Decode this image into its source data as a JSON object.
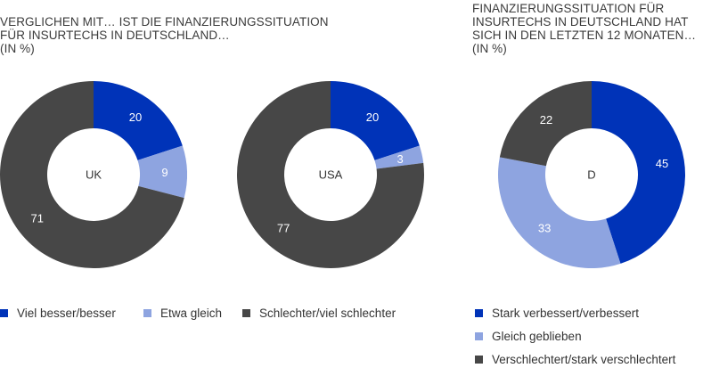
{
  "titles": {
    "left": [
      "VERGLICHEN MIT… IST DIE FINANZIERUNGSSITUATION",
      "FÜR INSURTECHS IN DEUTSCHLAND…",
      "(IN %)"
    ],
    "right": [
      "FINANZIERUNGSSITUATION FÜR",
      "INSURTECHS IN DEUTSCHLAND HAT",
      "SICH IN DEN LETZTEN 12 MONATEN…",
      "(IN %)"
    ]
  },
  "colors": {
    "dark_blue": "#0033b8",
    "light_blue": "#8ea4e0",
    "dark_grey": "#474747"
  },
  "legend_left": [
    {
      "label": "Viel besser/besser",
      "color": "#0033b8"
    },
    {
      "label": "Etwa gleich",
      "color": "#8ea4e0"
    },
    {
      "label": "Schlechter/viel schlechter",
      "color": "#474747"
    }
  ],
  "legend_right": [
    {
      "label": "Stark verbessert/verbessert",
      "color": "#0033b8"
    },
    {
      "label": "Gleich geblieben",
      "color": "#8ea4e0"
    },
    {
      "label": "Verschlechtert/stark verschlechtert",
      "color": "#474747"
    }
  ],
  "chart_data": [
    {
      "type": "pie",
      "center_label": "UK",
      "categories": [
        "Viel besser/besser",
        "Etwa gleich",
        "Schlechter/viel schlechter"
      ],
      "values": [
        20,
        9,
        71
      ],
      "colors": [
        "#0033b8",
        "#8ea4e0",
        "#474747"
      ],
      "label_colors": [
        "#ffffff",
        "#ffffff",
        "#ffffff"
      ]
    },
    {
      "type": "pie",
      "center_label": "USA",
      "categories": [
        "Viel besser/besser",
        "Etwa gleich",
        "Schlechter/viel schlechter"
      ],
      "values": [
        20,
        3,
        77
      ],
      "colors": [
        "#0033b8",
        "#8ea4e0",
        "#474747"
      ],
      "label_colors": [
        "#ffffff",
        "#ffffff",
        "#ffffff"
      ]
    },
    {
      "type": "pie",
      "center_label": "D",
      "categories": [
        "Stark verbessert/verbessert",
        "Gleich geblieben",
        "Verschlechtert/stark verschlechtert"
      ],
      "values": [
        45,
        33,
        22
      ],
      "colors": [
        "#0033b8",
        "#8ea4e0",
        "#474747"
      ],
      "label_colors": [
        "#ffffff",
        "#ffffff",
        "#ffffff"
      ]
    }
  ]
}
